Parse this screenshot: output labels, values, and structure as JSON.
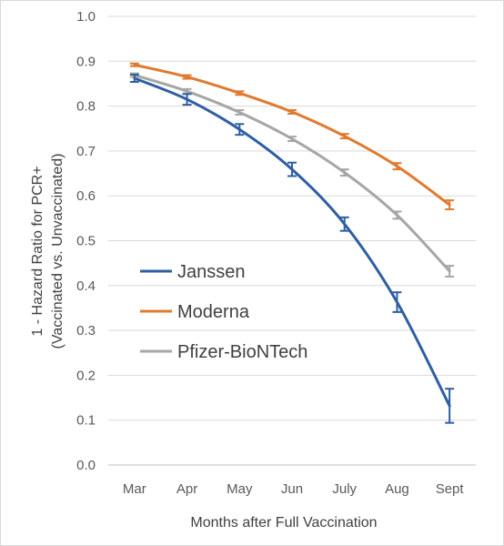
{
  "chart_data": {
    "type": "line",
    "title": "",
    "xlabel": "Months after Full Vaccination",
    "ylabel_line1": "1 - Hazard Ratio for PCR+",
    "ylabel_line2": "(Vaccinated vs. Unvaccinated)",
    "categories": [
      "Mar",
      "Apr",
      "May",
      "Jun",
      "July",
      "Aug",
      "Sept"
    ],
    "ylim": [
      0,
      1.0
    ],
    "y_ticks": [
      "0.0",
      "0.1",
      "0.2",
      "0.3",
      "0.4",
      "0.5",
      "0.6",
      "0.7",
      "0.8",
      "0.9",
      "1.0"
    ],
    "grid": true,
    "legend_position": "left-center",
    "series": [
      {
        "name": "Janssen",
        "color": "#2E5FA3",
        "values": [
          0.862,
          0.815,
          0.748,
          0.659,
          0.537,
          0.363,
          0.132
        ],
        "errors": [
          0.008,
          0.012,
          0.012,
          0.015,
          0.015,
          0.022,
          0.038
        ]
      },
      {
        "name": "Moderna",
        "color": "#E07A2E",
        "values": [
          0.892,
          0.865,
          0.829,
          0.787,
          0.733,
          0.666,
          0.58
        ],
        "errors": [
          0.003,
          0.004,
          0.004,
          0.004,
          0.005,
          0.007,
          0.01
        ]
      },
      {
        "name": "Pfizer-BioNTech",
        "color": "#A6A6A6",
        "values": [
          0.869,
          0.833,
          0.786,
          0.727,
          0.652,
          0.557,
          0.432
        ],
        "errors": [
          0.004,
          0.005,
          0.005,
          0.005,
          0.007,
          0.008,
          0.012
        ]
      }
    ]
  }
}
